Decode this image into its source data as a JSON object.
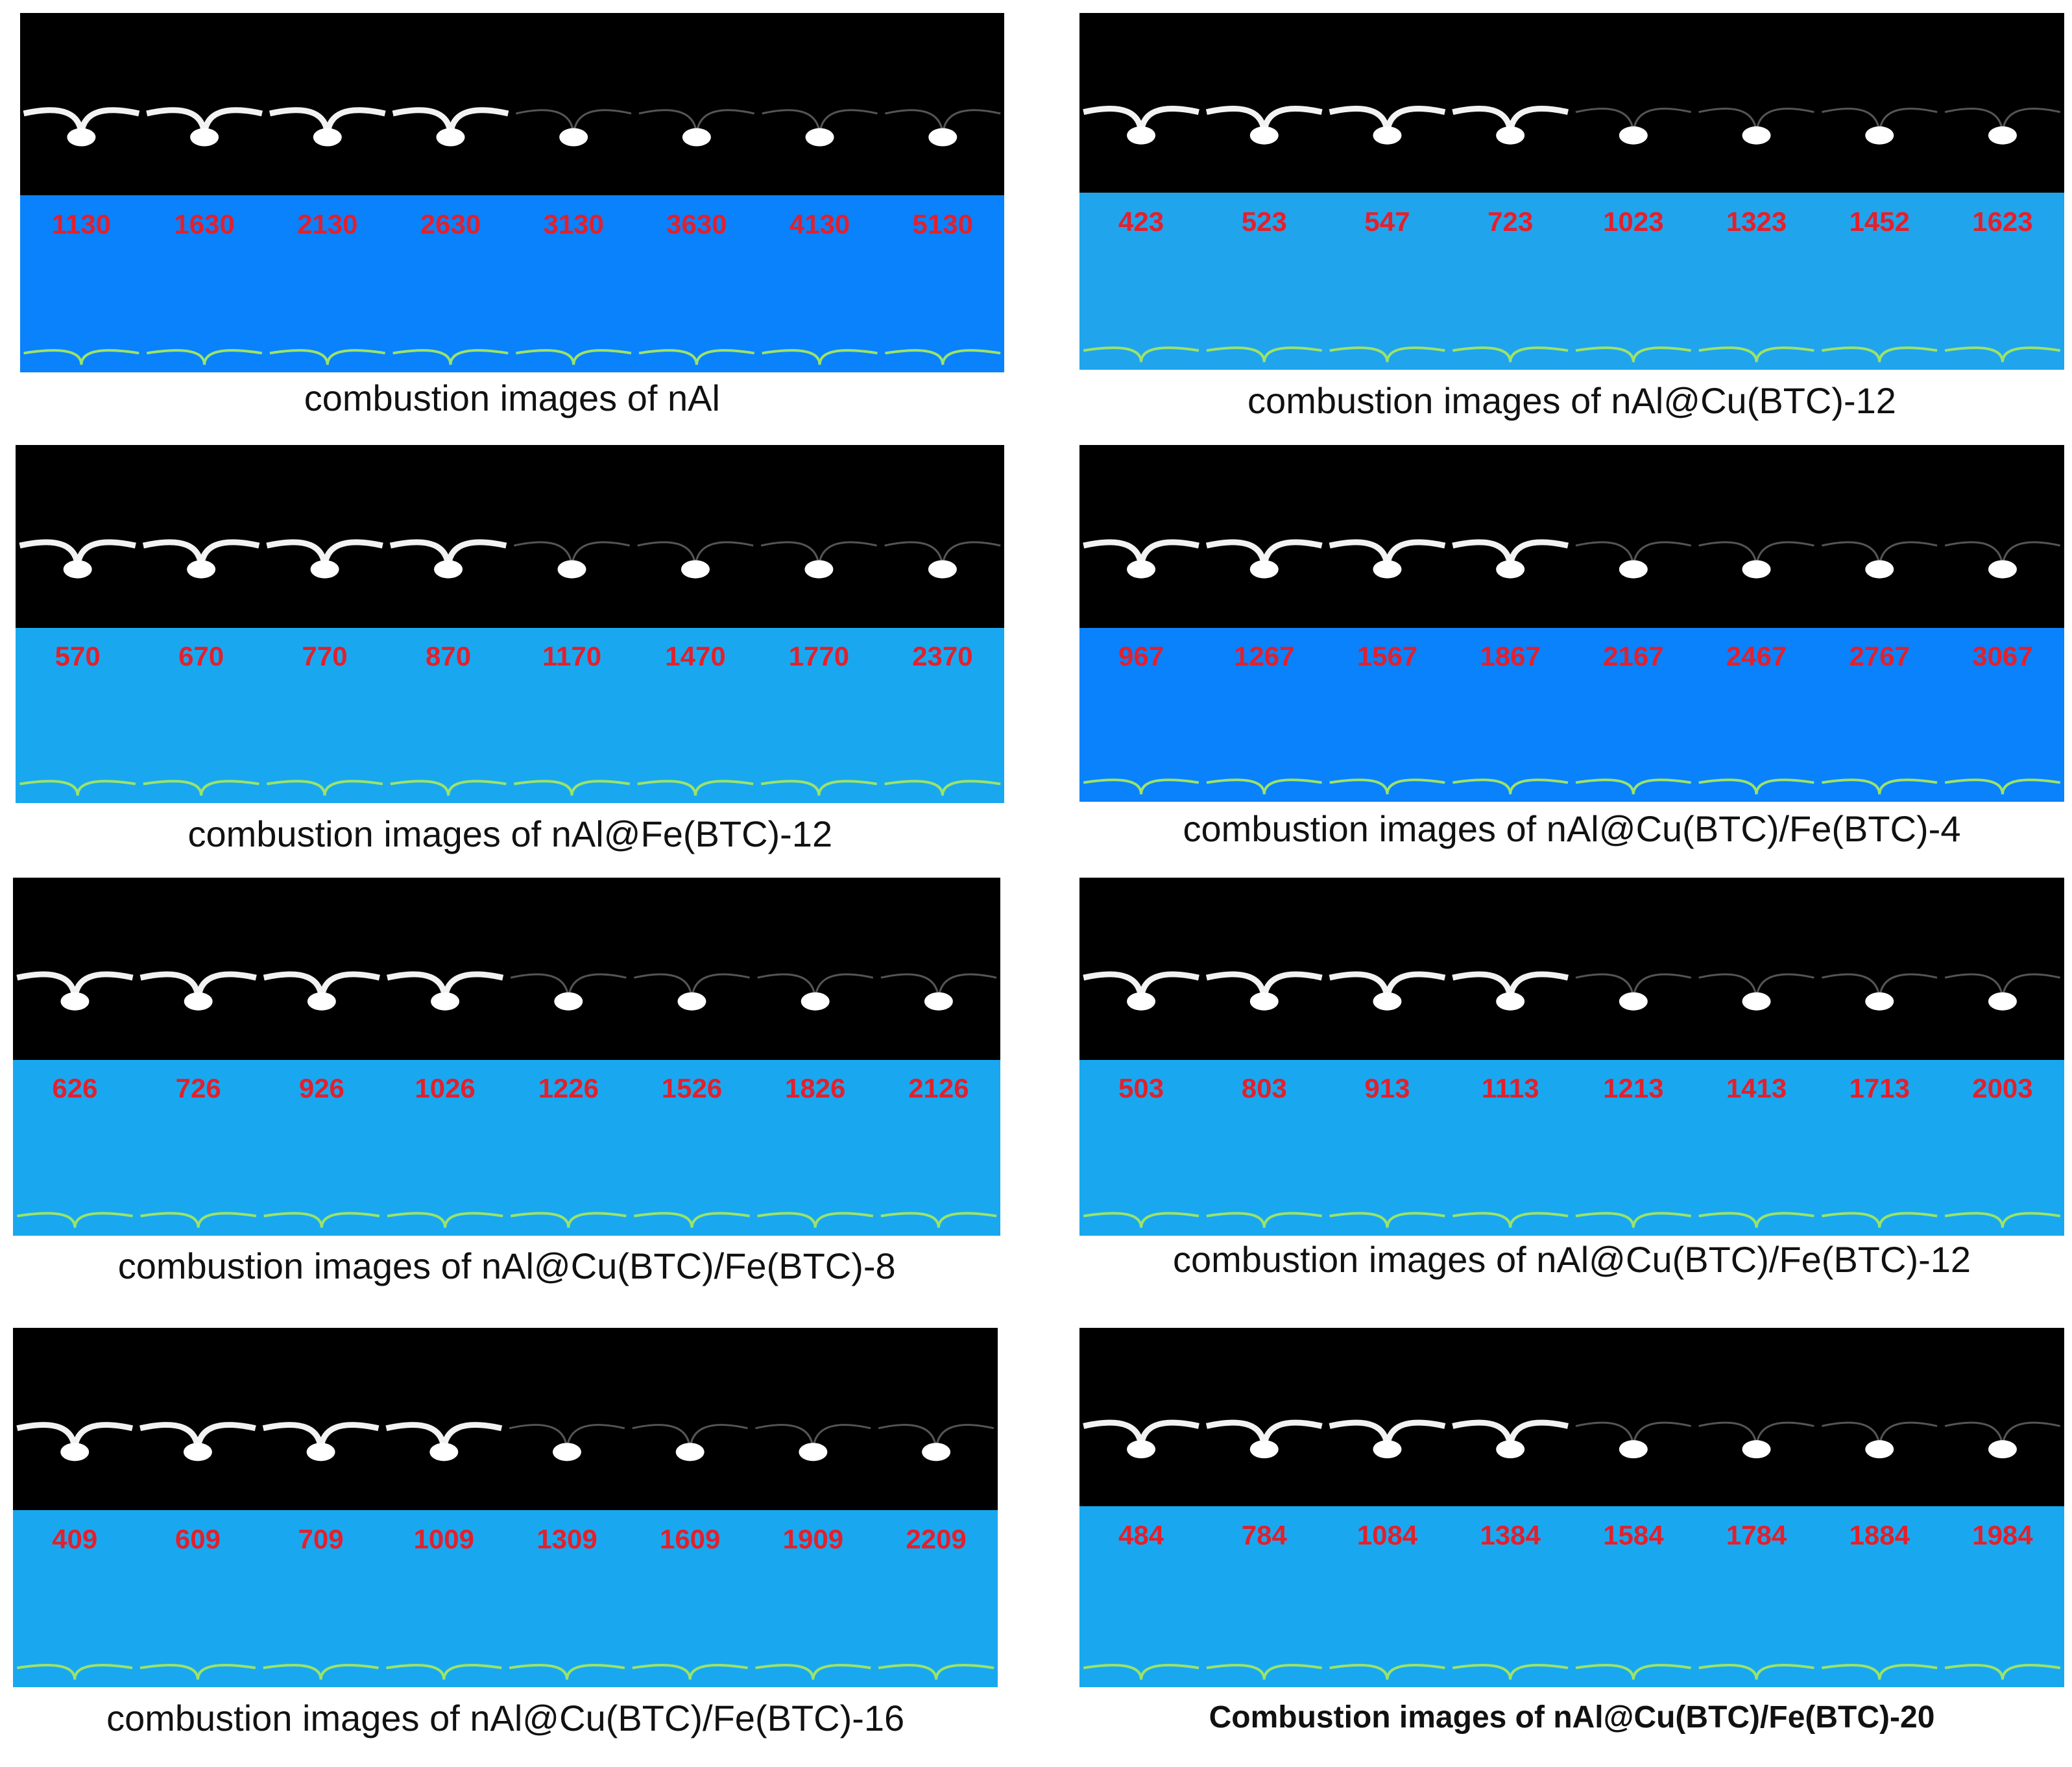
{
  "panels": [
    {
      "caption": "combustion images of nAl",
      "times": [
        "1130",
        "1630",
        "2130",
        "2630",
        "3130",
        "3630",
        "4130",
        "5130"
      ]
    },
    {
      "caption": "combustion images of nAl@Cu(BTC)-12",
      "times": [
        "423",
        "523",
        "547",
        "723",
        "1023",
        "1323",
        "1452",
        "1623"
      ]
    },
    {
      "caption": "combustion images of nAl@Fe(BTC)-12",
      "times": [
        "570",
        "670",
        "770",
        "870",
        "1170",
        "1470",
        "1770",
        "2370"
      ]
    },
    {
      "caption": "combustion images of nAl@Cu(BTC)/Fe(BTC)-4",
      "times": [
        "967",
        "1267",
        "1567",
        "1867",
        "2167",
        "2467",
        "2767",
        "3067"
      ]
    },
    {
      "caption": "combustion images of nAl@Cu(BTC)/Fe(BTC)-8",
      "times": [
        "626",
        "726",
        "926",
        "1026",
        "1226",
        "1526",
        "1826",
        "2126"
      ]
    },
    {
      "caption": "combustion images of nAl@Cu(BTC)/Fe(BTC)-12",
      "times": [
        "503",
        "803",
        "913",
        "1113",
        "1213",
        "1413",
        "1713",
        "2003"
      ]
    },
    {
      "caption": "combustion images of nAl@Cu(BTC)/Fe(BTC)-16",
      "times": [
        "409",
        "609",
        "709",
        "1009",
        "1309",
        "1609",
        "1909",
        "2209"
      ]
    },
    {
      "caption": "Combustion images of nAl@Cu(BTC)/Fe(BTC)-20",
      "times": [
        "484",
        "784",
        "1084",
        "1384",
        "1584",
        "1784",
        "1884",
        "1984"
      ]
    }
  ]
}
